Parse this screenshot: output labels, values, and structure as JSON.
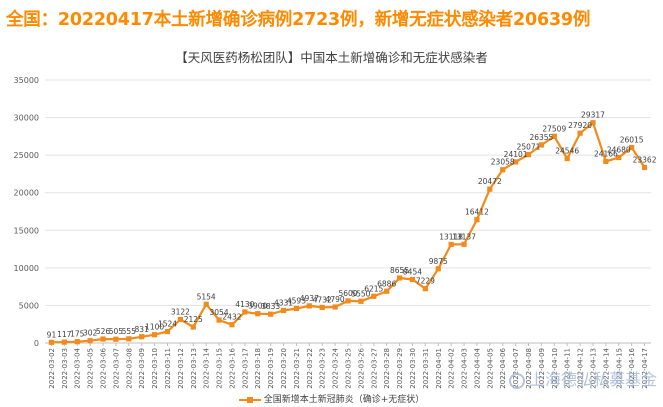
{
  "headline": "全国：20220417本土新增确诊病例2723例，新增无症状感染者20639例",
  "colors": {
    "headline": "#ff8a00",
    "series": "#f28a1c"
  },
  "watermark": "上海德弘私募基金",
  "chart_data": {
    "type": "line",
    "title": "【天风医药杨松团队】中国本土新增确诊和无症状感染者",
    "ylim": [
      0,
      35000
    ],
    "yticks": [
      0,
      5000,
      10000,
      15000,
      20000,
      25000,
      30000,
      35000
    ],
    "grid": true,
    "legend_position": "bottom",
    "x": [
      "2022-03-02",
      "2022-03-03",
      "2022-03-04",
      "2022-03-05",
      "2022-03-06",
      "2022-03-07",
      "2022-03-08",
      "2022-03-09",
      "2022-03-10",
      "2022-03-11",
      "2022-03-12",
      "2022-03-13",
      "2022-03-14",
      "2022-03-15",
      "2022-03-16",
      "2022-03-17",
      "2022-03-18",
      "2022-03-19",
      "2022-03-20",
      "2022-03-21",
      "2022-03-22",
      "2022-03-23",
      "2022-03-24",
      "2022-03-25",
      "2022-03-26",
      "2022-03-27",
      "2022-03-28",
      "2022-03-29",
      "2022-03-30",
      "2022-03-31",
      "2022-04-01",
      "2022-04-02",
      "2022-04-03",
      "2022-04-04",
      "2022-04-05",
      "2022-04-06",
      "2022-04-07",
      "2022-04-08",
      "2022-04-09",
      "2022-04-10",
      "2022-04-11",
      "2022-04-12",
      "2022-04-13",
      "2022-04-14",
      "2022-04-15",
      "2022-04-16",
      "2022-04-17"
    ],
    "series": [
      {
        "name": "全国新增本土新冠肺炎（确诊+无症状）",
        "values": [
          91,
          117,
          175,
          302,
          526,
          505,
          555,
          831,
          1100,
          1524,
          3122,
          2125,
          5154,
          3054,
          2432,
          4130,
          3900,
          3833,
          4331,
          4593,
          4937,
          4732,
          4790,
          5600,
          5550,
          6215,
          6886,
          8655,
          8454,
          7229,
          9875,
          13118,
          13137,
          16412,
          20472,
          23058,
          24101,
          25071,
          26355,
          27509,
          24546,
          27920,
          29317,
          24166,
          24680,
          26015,
          23362
        ],
        "labels": [
          "91",
          "117",
          "175",
          "302",
          "526",
          "505",
          "555",
          "831",
          "1100",
          "1524",
          "3122",
          "2125",
          "5154",
          "3054",
          "2432",
          "4130",
          "3900",
          "3833",
          "4331",
          "4593",
          "4937",
          "4732",
          "4790",
          "5600",
          "5550",
          "6215",
          "6886",
          "8655",
          "8454",
          "7229",
          "9875",
          "13118",
          "13137",
          "16412",
          "20472",
          "23058",
          "24101",
          "25071",
          "26355",
          "27509",
          "24546",
          "27920",
          "29317",
          "24166",
          "24680",
          "26015",
          "23362"
        ]
      }
    ]
  }
}
